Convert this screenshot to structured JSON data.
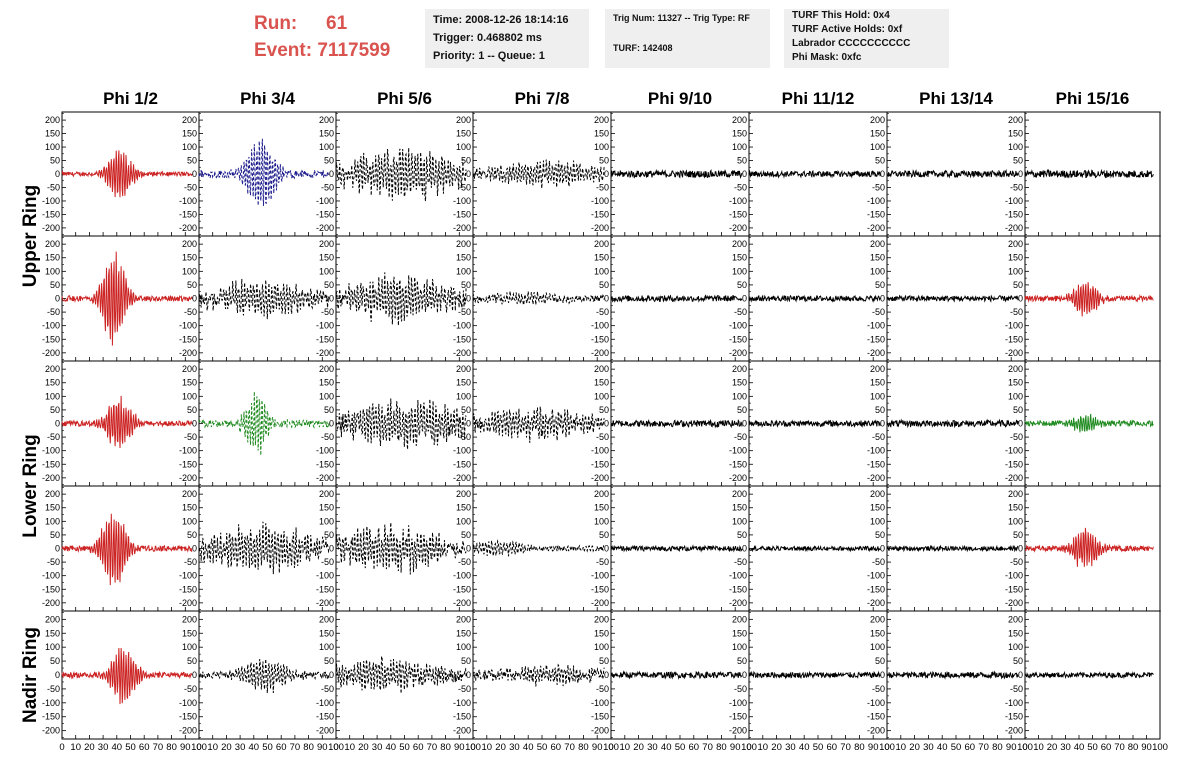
{
  "header": {
    "run_label": "Run:",
    "run_value": "61",
    "event_label": "Event:",
    "event_value": "7117599",
    "box1": {
      "time": "Time: 2008-12-26 18:14:16",
      "trigger": "Trigger: 0.468802 ms",
      "priority": "Priority: 1 -- Queue: 1"
    },
    "box2": {
      "trig": "Trig Num: 11327 -- Trig Type: RF",
      "turf": "TURF: 142408"
    },
    "box3": {
      "hold": "TURF This Hold: 0x4",
      "active": "TURF Active Holds: 0xf",
      "labrador": "Labrador CCCCCCCCCC",
      "phimask": "Phi Mask: 0xfc"
    }
  },
  "chart_data": {
    "type": "line",
    "columns": [
      "Phi 1/2",
      "Phi 3/4",
      "Phi 5/6",
      "Phi 7/8",
      "Phi 9/10",
      "Phi 11/12",
      "Phi 13/14",
      "Phi 15/16"
    ],
    "ring_labels": [
      "Upper Ring",
      "Lower Ring",
      "Nadir Ring"
    ],
    "ylim": [
      -230,
      230
    ],
    "y_ticks": [
      200,
      150,
      100,
      50,
      0,
      -50,
      -100,
      -150,
      -200
    ],
    "x_ticks": [
      0,
      10,
      20,
      30,
      40,
      50,
      60,
      70,
      80,
      90,
      100
    ],
    "xlim": [
      0,
      100
    ],
    "colors": {
      "red": "#cc2222",
      "blue": "#1a1a8c",
      "green": "#1f8a1f",
      "black": "#000000"
    },
    "rows": [
      [
        {
          "color": "red",
          "style": "solid",
          "noise": 8,
          "peak": 100,
          "center": 42,
          "width": 10,
          "freq": 1.6
        },
        {
          "color": "blue",
          "style": "dash",
          "noise": 14,
          "peak": 150,
          "center": 45,
          "width": 12,
          "freq": 1.5
        },
        {
          "color": "black",
          "style": "dash",
          "noise": 30,
          "peak": 90,
          "center": 50,
          "width": 45,
          "freq": 1.3
        },
        {
          "color": "black",
          "style": "dash",
          "noise": 18,
          "peak": 45,
          "center": 55,
          "width": 40,
          "freq": 1.3
        },
        {
          "color": "black",
          "style": "solid",
          "noise": 13,
          "peak": 0,
          "center": 50,
          "width": 10,
          "freq": 1.0
        },
        {
          "color": "black",
          "style": "solid",
          "noise": 11,
          "peak": 0,
          "center": 50,
          "width": 10,
          "freq": 1.0
        },
        {
          "color": "black",
          "style": "solid",
          "noise": 12,
          "peak": 0,
          "center": 50,
          "width": 10,
          "freq": 1.0
        },
        {
          "color": "black",
          "style": "solid",
          "noise": 14,
          "peak": 0,
          "center": 50,
          "width": 10,
          "freq": 1.0
        }
      ],
      [
        {
          "color": "red",
          "style": "solid",
          "noise": 10,
          "peak": 200,
          "center": 38,
          "width": 9,
          "freq": 1.6
        },
        {
          "color": "black",
          "style": "dash",
          "noise": 25,
          "peak": 60,
          "center": 45,
          "width": 40,
          "freq": 1.3
        },
        {
          "color": "black",
          "style": "dash",
          "noise": 28,
          "peak": 80,
          "center": 45,
          "width": 40,
          "freq": 1.3
        },
        {
          "color": "black",
          "style": "dash",
          "noise": 12,
          "peak": 20,
          "center": 40,
          "width": 30,
          "freq": 1.3
        },
        {
          "color": "black",
          "style": "solid",
          "noise": 11,
          "peak": 0,
          "center": 50,
          "width": 10,
          "freq": 1.0
        },
        {
          "color": "black",
          "style": "solid",
          "noise": 10,
          "peak": 0,
          "center": 50,
          "width": 10,
          "freq": 1.0
        },
        {
          "color": "black",
          "style": "solid",
          "noise": 10,
          "peak": 0,
          "center": 50,
          "width": 10,
          "freq": 1.0
        },
        {
          "color": "red",
          "style": "solid",
          "noise": 10,
          "peak": 75,
          "center": 45,
          "width": 10,
          "freq": 1.6
        }
      ],
      [
        {
          "color": "red",
          "style": "solid",
          "noise": 10,
          "peak": 110,
          "center": 42,
          "width": 10,
          "freq": 1.6
        },
        {
          "color": "green",
          "style": "dash",
          "noise": 14,
          "peak": 130,
          "center": 42,
          "width": 9,
          "freq": 1.5
        },
        {
          "color": "black",
          "style": "dash",
          "noise": 35,
          "peak": 80,
          "center": 50,
          "width": 45,
          "freq": 1.3
        },
        {
          "color": "black",
          "style": "dash",
          "noise": 25,
          "peak": 50,
          "center": 45,
          "width": 40,
          "freq": 1.3
        },
        {
          "color": "black",
          "style": "solid",
          "noise": 12,
          "peak": 0,
          "center": 50,
          "width": 10,
          "freq": 1.0
        },
        {
          "color": "black",
          "style": "solid",
          "noise": 11,
          "peak": 0,
          "center": 50,
          "width": 10,
          "freq": 1.0
        },
        {
          "color": "black",
          "style": "solid",
          "noise": 12,
          "peak": 0,
          "center": 50,
          "width": 10,
          "freq": 1.0
        },
        {
          "color": "green",
          "style": "solid",
          "noise": 10,
          "peak": 35,
          "center": 45,
          "width": 10,
          "freq": 1.6
        }
      ],
      [
        {
          "color": "red",
          "style": "solid",
          "noise": 10,
          "peak": 160,
          "center": 38,
          "width": 10,
          "freq": 1.6
        },
        {
          "color": "black",
          "style": "dash",
          "noise": 30,
          "peak": 80,
          "center": 45,
          "width": 40,
          "freq": 1.3
        },
        {
          "color": "black",
          "style": "dash",
          "noise": 32,
          "peak": 80,
          "center": 40,
          "width": 40,
          "freq": 1.3
        },
        {
          "color": "black",
          "style": "dash",
          "noise": 10,
          "peak": 30,
          "center": 20,
          "width": 20,
          "freq": 1.3
        },
        {
          "color": "black",
          "style": "solid",
          "noise": 9,
          "peak": 0,
          "center": 50,
          "width": 10,
          "freq": 1.0
        },
        {
          "color": "black",
          "style": "solid",
          "noise": 8,
          "peak": 0,
          "center": 50,
          "width": 10,
          "freq": 1.0
        },
        {
          "color": "black",
          "style": "solid",
          "noise": 8,
          "peak": 0,
          "center": 50,
          "width": 10,
          "freq": 1.0
        },
        {
          "color": "red",
          "style": "solid",
          "noise": 10,
          "peak": 90,
          "center": 45,
          "width": 10,
          "freq": 1.6
        }
      ],
      [
        {
          "color": "red",
          "style": "solid",
          "noise": 10,
          "peak": 120,
          "center": 45,
          "width": 10,
          "freq": 1.6
        },
        {
          "color": "black",
          "style": "dash",
          "noise": 12,
          "peak": 60,
          "center": 48,
          "width": 20,
          "freq": 1.3
        },
        {
          "color": "black",
          "style": "dash",
          "noise": 25,
          "peak": 55,
          "center": 35,
          "width": 35,
          "freq": 1.3
        },
        {
          "color": "black",
          "style": "dash",
          "noise": 18,
          "peak": 30,
          "center": 60,
          "width": 35,
          "freq": 1.3
        },
        {
          "color": "black",
          "style": "solid",
          "noise": 11,
          "peak": 0,
          "center": 50,
          "width": 10,
          "freq": 1.0
        },
        {
          "color": "black",
          "style": "solid",
          "noise": 10,
          "peak": 0,
          "center": 50,
          "width": 10,
          "freq": 1.0
        },
        {
          "color": "black",
          "style": "solid",
          "noise": 11,
          "peak": 0,
          "center": 50,
          "width": 10,
          "freq": 1.0
        },
        {
          "color": "black",
          "style": "solid",
          "noise": 9,
          "peak": 0,
          "center": 50,
          "width": 10,
          "freq": 1.0
        }
      ]
    ]
  }
}
